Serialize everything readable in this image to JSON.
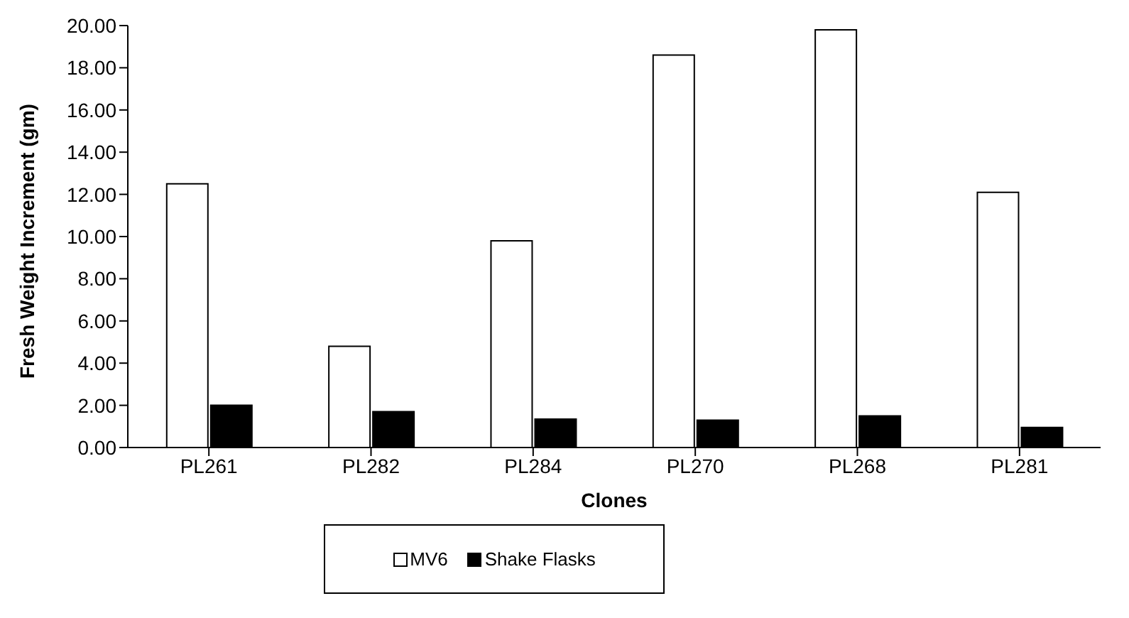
{
  "chart_data": {
    "type": "bar",
    "xlabel": "Clones",
    "ylabel": "Fresh Weight Increment (gm)",
    "categories": [
      "PL261",
      "PL282",
      "PL284",
      "PL270",
      "PL268",
      "PL281"
    ],
    "series": [
      {
        "name": "MV6",
        "color": "#ffffff",
        "values": [
          12.5,
          4.8,
          9.8,
          18.6,
          19.8,
          12.1
        ]
      },
      {
        "name": "Shake Flasks",
        "color": "#000000",
        "values": [
          2.0,
          1.7,
          1.35,
          1.3,
          1.5,
          0.95
        ]
      }
    ],
    "ylim": [
      0,
      20
    ],
    "yticks": [
      {
        "value": 0,
        "label": "0.00"
      },
      {
        "value": 2,
        "label": "2.00"
      },
      {
        "value": 4,
        "label": "4.00"
      },
      {
        "value": 6,
        "label": "6.00"
      },
      {
        "value": 8,
        "label": "8.00"
      },
      {
        "value": 10,
        "label": "10.00"
      },
      {
        "value": 12,
        "label": "12.00"
      },
      {
        "value": 14,
        "label": "14.00"
      },
      {
        "value": 16,
        "label": "16.00"
      },
      {
        "value": 18,
        "label": "18.00"
      },
      {
        "value": 20,
        "label": "20.00"
      }
    ],
    "grid": false,
    "legend": "bottom"
  }
}
